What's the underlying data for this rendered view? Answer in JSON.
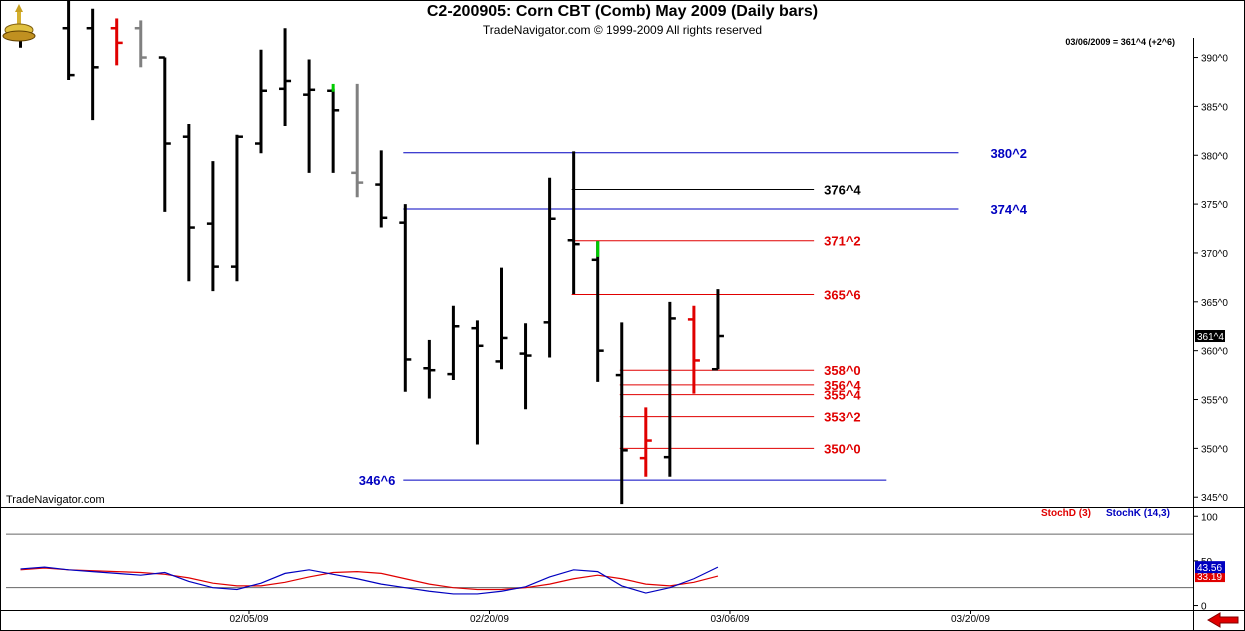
{
  "header": {
    "title": "C2-200905:  Corn CBT (Comb) May 2009  (Daily bars)",
    "subtitle": "TradeNavigator.com © 1999-2009 All rights reserved",
    "readout": "03/06/2009 = 361^4 (+2^6)",
    "watermark": "TradeNavigator.com"
  },
  "colors": {
    "price_bar": "#000000",
    "down_bar": "#e00000",
    "grey_bar": "#808080",
    "up_tick": "#00cc00",
    "blue_level": "#0000c0",
    "red_level": "#e00000",
    "stoch_d": "#e00000",
    "stoch_k": "#0000c0"
  },
  "icons": {
    "logo": "gold-trophy-logo-icon",
    "nav": "red-left-arrow-icon"
  },
  "chart_data": [
    {
      "type": "ohlc",
      "y_axis": {
        "ticks": [
          "390^0",
          "385^0",
          "380^0",
          "375^0",
          "370^0",
          "365^0",
          "360^0",
          "355^0",
          "350^0",
          "345^0"
        ],
        "tick_values": [
          390,
          385,
          380,
          375,
          370,
          365,
          360,
          355,
          350,
          345
        ],
        "ylim": [
          344,
          392
        ],
        "current_price_label": "361^4",
        "current_price": 361.5
      },
      "x_axis": {
        "labels": [
          "02/05/09",
          "02/20/09",
          "03/06/09",
          "03/20/09"
        ],
        "label_slots": [
          9.5,
          19.5,
          29.5,
          39.5
        ],
        "slot_range": [
          0,
          51
        ]
      },
      "bars": [
        {
          "slot": 0,
          "o": 392,
          "h": 393,
          "l": 391,
          "c": 392,
          "color": "black"
        },
        {
          "slot": 2,
          "o": 393,
          "h": 398,
          "l": 387.7,
          "c": 388.2,
          "color": "black"
        },
        {
          "slot": 3,
          "o": 393,
          "h": 395,
          "l": 383.6,
          "c": 389,
          "color": "black"
        },
        {
          "slot": 4,
          "o": 393,
          "h": 394,
          "l": 389.2,
          "c": 391.5,
          "color": "red"
        },
        {
          "slot": 5,
          "o": 393,
          "h": 393.8,
          "l": 389,
          "c": 390,
          "color": "grey"
        },
        {
          "slot": 6,
          "o": 390,
          "h": 390,
          "l": 374.2,
          "c": 381.2,
          "color": "black"
        },
        {
          "slot": 7,
          "o": 381.9,
          "h": 383.2,
          "l": 367.1,
          "c": 372.6,
          "color": "black"
        },
        {
          "slot": 8,
          "o": 373,
          "h": 379.4,
          "l": 366.1,
          "c": 368.6,
          "color": "black"
        },
        {
          "slot": 9,
          "o": 368.6,
          "h": 382.1,
          "l": 367.1,
          "c": 381.9,
          "color": "black"
        },
        {
          "slot": 10,
          "o": 381.2,
          "h": 390.8,
          "l": 380.2,
          "c": 386.6,
          "color": "black"
        },
        {
          "slot": 11,
          "o": 386.8,
          "h": 393,
          "l": 383,
          "c": 387.6,
          "color": "black"
        },
        {
          "slot": 12,
          "o": 386.2,
          "h": 389.8,
          "l": 378.2,
          "c": 386.7,
          "color": "black"
        },
        {
          "slot": 13,
          "o": 386.6,
          "h": 386.8,
          "l": 378.2,
          "c": 384.6,
          "color": "black"
        },
        {
          "slot": 14,
          "o": 378.2,
          "h": 387.3,
          "l": 375.7,
          "c": 377.2,
          "color": "grey"
        },
        {
          "slot": 15,
          "o": 377,
          "h": 380.5,
          "l": 372.6,
          "c": 373.6,
          "color": "black"
        },
        {
          "slot": 16,
          "o": 373.1,
          "h": 375,
          "l": 355.8,
          "c": 359.1,
          "color": "black"
        },
        {
          "slot": 17,
          "o": 358.2,
          "h": 361.1,
          "l": 355.1,
          "c": 358,
          "color": "black"
        },
        {
          "slot": 18,
          "o": 357.6,
          "h": 364.6,
          "l": 357,
          "c": 362.5,
          "color": "black"
        },
        {
          "slot": 19,
          "o": 362.3,
          "h": 363.1,
          "l": 350.4,
          "c": 360.5,
          "color": "black"
        },
        {
          "slot": 20,
          "o": 358.9,
          "h": 368.5,
          "l": 358.1,
          "c": 361.3,
          "color": "black"
        },
        {
          "slot": 21,
          "o": 359.7,
          "h": 362.8,
          "l": 354,
          "c": 359.5,
          "color": "black"
        },
        {
          "slot": 22,
          "o": 362.9,
          "h": 377.7,
          "l": 359.3,
          "c": 373.5,
          "color": "black"
        },
        {
          "slot": 23,
          "o": 371.3,
          "h": 380.4,
          "l": 365.8,
          "c": 370.9,
          "color": "black"
        },
        {
          "slot": 24,
          "o": 369.3,
          "h": 371.2,
          "l": 356.8,
          "c": 360,
          "color": "black"
        },
        {
          "slot": 25,
          "o": 357.5,
          "h": 362.9,
          "l": 344.3,
          "c": 349.8,
          "color": "black"
        },
        {
          "slot": 26,
          "o": 349,
          "h": 354.2,
          "l": 347.1,
          "c": 350.8,
          "color": "red"
        },
        {
          "slot": 27,
          "o": 349.1,
          "h": 365,
          "l": 347.1,
          "c": 363.3,
          "color": "black"
        },
        {
          "slot": 28,
          "o": 363.2,
          "h": 364.6,
          "l": 355.6,
          "c": 359,
          "color": "red"
        },
        {
          "slot": 29,
          "o": 358.1,
          "h": 366.3,
          "l": 358.1,
          "c": 361.5,
          "color": "black"
        }
      ],
      "green_up_ticks": [
        {
          "slot": 13,
          "from": 386.5,
          "to": 387.3
        },
        {
          "slot": 24,
          "from": 369.6,
          "to": 371.2
        }
      ],
      "levels": [
        {
          "label": "380^2",
          "value": 380.25,
          "color": "blue",
          "from_slot": 16,
          "to_slot": 39
        },
        {
          "label": "376^4",
          "value": 376.5,
          "color": "black",
          "from_slot": 23,
          "to_slot": 33
        },
        {
          "label": "374^4",
          "value": 374.5,
          "color": "blue",
          "from_slot": 16,
          "to_slot": 39
        },
        {
          "label": "371^2",
          "value": 371.25,
          "color": "red",
          "from_slot": 23,
          "to_slot": 33
        },
        {
          "label": "365^6",
          "value": 365.75,
          "color": "red",
          "from_slot": 23,
          "to_slot": 33
        },
        {
          "label": "358^0",
          "value": 358.0,
          "color": "red",
          "from_slot": 25,
          "to_slot": 33
        },
        {
          "label": "356^4",
          "value": 356.5,
          "color": "red",
          "from_slot": 25,
          "to_slot": 33
        },
        {
          "label": "355^4",
          "value": 355.5,
          "color": "red",
          "from_slot": 25,
          "to_slot": 33
        },
        {
          "label": "353^2",
          "value": 353.25,
          "color": "red",
          "from_slot": 25,
          "to_slot": 33
        },
        {
          "label": "350^0",
          "value": 350.0,
          "color": "red",
          "from_slot": 25,
          "to_slot": 33
        },
        {
          "label": "346^6",
          "value": 346.75,
          "color": "blue",
          "from_slot": 16,
          "to_slot": 36,
          "label_side": "left"
        }
      ]
    },
    {
      "type": "line",
      "y_axis": {
        "ticks": [
          "100",
          "50",
          "0"
        ],
        "tick_values": [
          100,
          50,
          0
        ],
        "ylim": [
          -5,
          107
        ]
      },
      "reference_lines": [
        80,
        20
      ],
      "series": [
        {
          "name": "StochD (3)",
          "color": "red",
          "last_label": "33.19",
          "x": [
            0,
            1,
            2,
            3,
            4,
            5,
            6,
            7,
            8,
            9,
            10,
            11,
            12,
            13,
            14,
            15,
            16,
            17,
            18,
            19,
            20,
            21,
            22,
            23,
            24,
            25,
            26,
            27,
            28,
            29
          ],
          "values": [
            40,
            42,
            40,
            39,
            38,
            37,
            35,
            31,
            25,
            22,
            22,
            26,
            32,
            37,
            38,
            36,
            30,
            24,
            20,
            18,
            18,
            20,
            24,
            30,
            34,
            30,
            24,
            22,
            26,
            33
          ]
        },
        {
          "name": "StochK (14,3)",
          "color": "blue",
          "last_label": "43.56",
          "x": [
            0,
            1,
            2,
            3,
            4,
            5,
            6,
            7,
            8,
            9,
            10,
            11,
            12,
            13,
            14,
            15,
            16,
            17,
            18,
            19,
            20,
            21,
            22,
            23,
            24,
            25,
            26,
            27,
            28,
            29
          ],
          "values": [
            41,
            43,
            40,
            38,
            36,
            34,
            37,
            27,
            20,
            18,
            25,
            36,
            40,
            35,
            30,
            24,
            20,
            16,
            13,
            13,
            16,
            21,
            32,
            40,
            38,
            22,
            14,
            20,
            30,
            43
          ]
        }
      ]
    }
  ]
}
